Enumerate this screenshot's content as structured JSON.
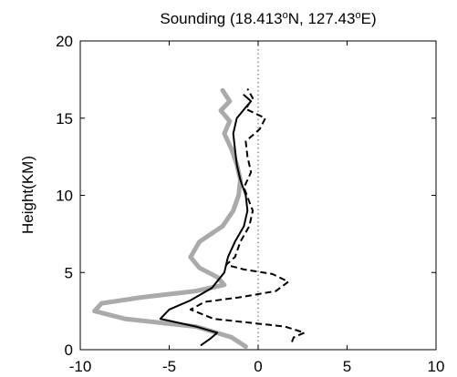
{
  "chart_data": {
    "type": "line",
    "title": {
      "prefix": "Sounding (18.413",
      "deg1": "o",
      "middle": "N, 127.43",
      "deg2": "o",
      "suffix": "E)"
    },
    "xlabel": "",
    "ylabel": "Height(KM)",
    "xlim": [
      -10,
      10
    ],
    "ylim": [
      0,
      20
    ],
    "xticks": [
      -10,
      -5,
      0,
      5,
      10
    ],
    "yticks": [
      0,
      5,
      10,
      15,
      20
    ],
    "xtick_labels": [
      "-10",
      "-5",
      "0",
      "5",
      "10"
    ],
    "ytick_labels": [
      "0",
      "5",
      "10",
      "15",
      "20"
    ],
    "grid": false,
    "reference_line": {
      "x": 0,
      "style": "dotted"
    },
    "series": [
      {
        "style": "thick-gray",
        "color": "#aaaaaa",
        "points": [
          [
            -0.7,
            0.2
          ],
          [
            -1.5,
            0.8
          ],
          [
            -3.5,
            1.5
          ],
          [
            -7.5,
            2.0
          ],
          [
            -9.2,
            2.5
          ],
          [
            -8.8,
            3.0
          ],
          [
            -6.5,
            3.4
          ],
          [
            -3.5,
            3.8
          ],
          [
            -1.9,
            4.2
          ],
          [
            -2.3,
            4.7
          ],
          [
            -3.3,
            5.3
          ],
          [
            -3.8,
            6.0
          ],
          [
            -3.3,
            7.0
          ],
          [
            -2.0,
            8.0
          ],
          [
            -1.4,
            9.0
          ],
          [
            -1.1,
            10.0
          ],
          [
            -1.0,
            11.0
          ],
          [
            -1.2,
            12.0
          ],
          [
            -1.5,
            13.0
          ],
          [
            -1.9,
            14.0
          ],
          [
            -1.6,
            14.8
          ],
          [
            -2.1,
            15.5
          ],
          [
            -1.6,
            16.1
          ],
          [
            -2.0,
            16.8
          ]
        ]
      },
      {
        "style": "solid-black",
        "color": "#000000",
        "points": [
          [
            -3.2,
            0.3
          ],
          [
            -2.7,
            0.7
          ],
          [
            -2.3,
            1.1
          ],
          [
            -3.5,
            1.5
          ],
          [
            -5.5,
            2.0
          ],
          [
            -5.0,
            2.6
          ],
          [
            -3.8,
            3.2
          ],
          [
            -2.6,
            4.0
          ],
          [
            -1.9,
            5.0
          ],
          [
            -1.7,
            6.0
          ],
          [
            -1.3,
            7.0
          ],
          [
            -0.8,
            8.0
          ],
          [
            -0.6,
            9.0
          ],
          [
            -0.7,
            10.0
          ],
          [
            -1.0,
            11.0
          ],
          [
            -1.2,
            12.0
          ],
          [
            -1.3,
            13.0
          ],
          [
            -1.4,
            14.0
          ],
          [
            -1.2,
            15.0
          ],
          [
            -0.7,
            15.7
          ],
          [
            -0.4,
            16.1
          ],
          [
            -0.8,
            16.5
          ]
        ]
      },
      {
        "style": "dashed-black",
        "color": "#000000",
        "points": [
          [
            1.9,
            0.5
          ],
          [
            2.0,
            0.8
          ],
          [
            2.6,
            1.1
          ],
          [
            1.5,
            1.5
          ],
          [
            -2.5,
            2.0
          ],
          [
            -3.8,
            2.6
          ],
          [
            -3.0,
            3.1
          ],
          [
            -1.0,
            3.4
          ],
          [
            1.0,
            3.8
          ],
          [
            1.7,
            4.4
          ],
          [
            0.8,
            4.9
          ],
          [
            -0.8,
            5.2
          ],
          [
            -1.8,
            5.5
          ],
          [
            -1.3,
            6.0
          ],
          [
            -1.0,
            7.0
          ],
          [
            -0.5,
            8.0
          ],
          [
            -0.3,
            9.0
          ],
          [
            -0.8,
            10.5
          ],
          [
            -0.4,
            11.5
          ],
          [
            -0.6,
            12.5
          ],
          [
            -0.7,
            13.5
          ],
          [
            0.1,
            14.3
          ],
          [
            0.4,
            15.0
          ],
          [
            -0.7,
            15.6
          ],
          [
            -0.3,
            16.3
          ],
          [
            -0.6,
            16.9
          ]
        ]
      }
    ]
  }
}
